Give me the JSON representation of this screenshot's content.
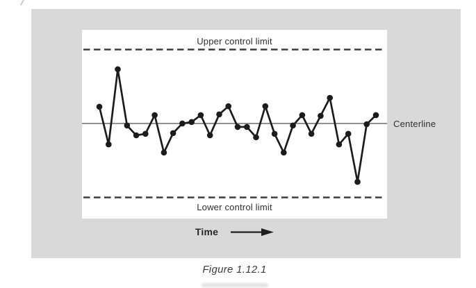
{
  "figure": {
    "caption": "Figure 1.12.1"
  },
  "chart_data": {
    "type": "line",
    "title": "",
    "xlabel": "Time",
    "ylabel": "",
    "x": [
      1,
      2,
      3,
      4,
      5,
      6,
      7,
      8,
      9,
      10,
      11,
      12,
      13,
      14,
      15,
      16,
      17,
      18,
      19,
      20,
      21,
      22,
      23,
      24,
      25,
      26,
      27,
      28,
      29,
      30,
      31
    ],
    "values": [
      0.68,
      -0.85,
      2.2,
      -0.08,
      -0.48,
      -0.42,
      0.34,
      -1.18,
      -0.39,
      0.0,
      0.06,
      0.34,
      -0.48,
      0.37,
      0.7,
      -0.14,
      -0.14,
      -0.56,
      0.7,
      -0.42,
      -1.18,
      -0.08,
      0.34,
      -0.42,
      0.31,
      1.04,
      -0.85,
      -0.42,
      -2.37,
      -0.03,
      0.34
    ],
    "annotations": {
      "upper_control_limit": {
        "label": "Upper control limit",
        "value": 3
      },
      "centerline": {
        "label": "Centerline",
        "value": 0
      },
      "lower_control_limit": {
        "label": "Lower control limit",
        "value": -3
      }
    },
    "ylim": [
      -3.86,
      3.8
    ],
    "grid": false,
    "legend": false,
    "marker": "filled-circle",
    "line_style": "solid",
    "limit_line_style": "dashed"
  },
  "colors": {
    "panel_bg": "#d9d9d9",
    "plot_bg": "#ffffff",
    "series": "#1c1c1c",
    "control_limit_line": "#3d3d3d",
    "centerline_line": "#606060",
    "label_text": "#2f2f2f",
    "caption_text": "#3c3c3c",
    "arrow": "#1f1f1f"
  }
}
